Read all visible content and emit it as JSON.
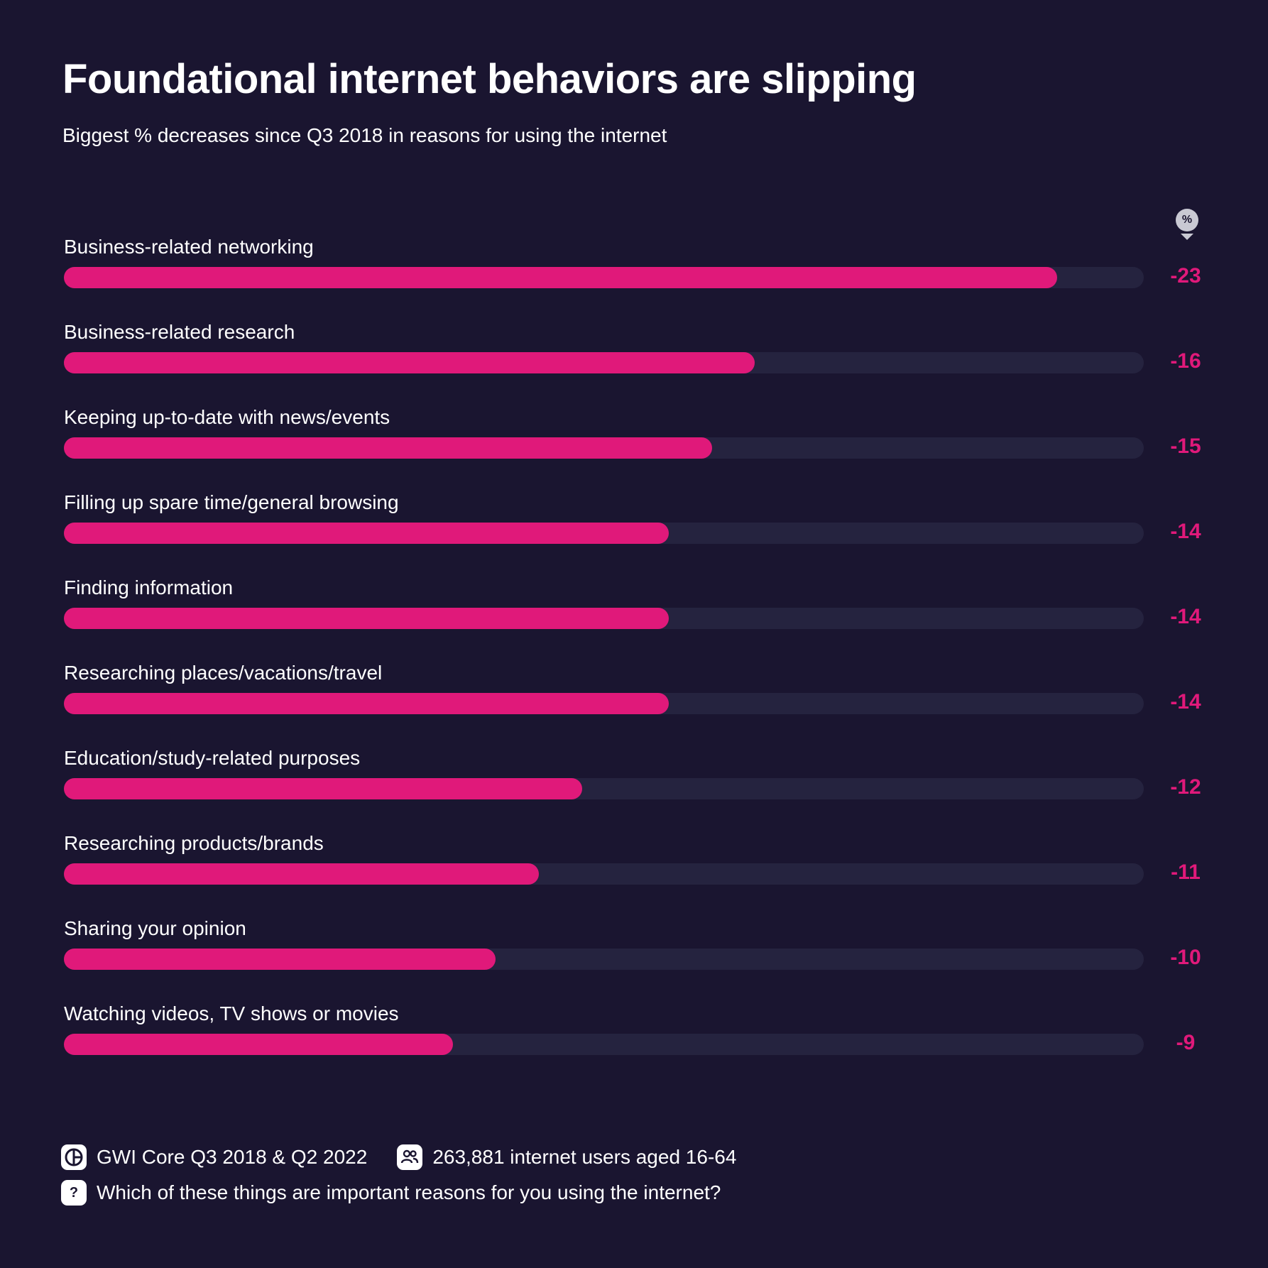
{
  "header": {
    "title": "Foundational internet behaviors are slipping",
    "subtitle": "Biggest % decreases since Q3 2018 in reasons for using the internet"
  },
  "unit_badge": "%",
  "colors": {
    "background": "#1a1530",
    "bar": "#e0197a",
    "track": "#25233f",
    "text": "#ffffff"
  },
  "chart_data": {
    "type": "bar",
    "orientation": "horizontal",
    "categories": [
      "Business-related networking",
      "Business-related research",
      "Keeping up-to-date with news/events",
      "Filling up spare time/general browsing",
      "Finding information",
      "Researching places/vacations/travel",
      "Education/study-related purposes",
      "Researching products/brands",
      "Sharing your opinion",
      "Watching videos, TV shows or movies"
    ],
    "values": [
      -23,
      -16,
      -15,
      -14,
      -14,
      -14,
      -12,
      -11,
      -10,
      -9
    ],
    "value_labels": [
      "-23",
      "-16",
      "-15",
      "-14",
      "-14",
      "-14",
      "-12",
      "-11",
      "-10",
      "-9"
    ],
    "unit": "%",
    "title": "Foundational internet behaviors are slipping",
    "subtitle": "Biggest % decreases since Q3 2018 in reasons for using the internet",
    "xlim": [
      0,
      25
    ],
    "grid": false,
    "legend": "none"
  },
  "footer": {
    "source": "GWI Core Q3 2018 & Q2 2022",
    "source_icon": "gwi-logo-icon",
    "sample": "263,881 internet users aged 16-64",
    "sample_icon": "users-icon",
    "question": "Which of these things are important reasons for you using the internet?",
    "question_icon": "question-icon",
    "question_glyph": "?"
  }
}
